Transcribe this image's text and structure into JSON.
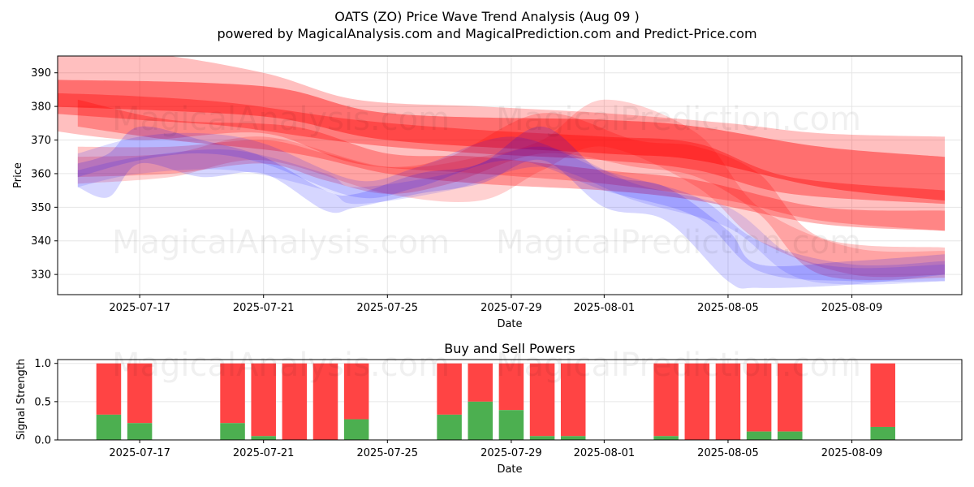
{
  "figure": {
    "title": "OATS (ZO) Price Wave Trend Analysis (Aug 09 )",
    "subtitle": "powered by MagicalAnalysis.com and MagicalPrediction.com and Predict-Price.com",
    "watermarks": [
      "MagicalAnalysis.com",
      "MagicalPrediction.com"
    ]
  },
  "colors": {
    "bear": "#ff0000",
    "bull": "#0000ff",
    "buy": "#4caf50",
    "sell": "#ff4444",
    "grid": "#e6e6e6"
  },
  "chart_data": [
    {
      "type": "area",
      "xlabel": "Date",
      "ylabel": "Price",
      "x_ticks": [
        "2025-07-17",
        "2025-07-21",
        "2025-07-25",
        "2025-07-29",
        "2025-08-01",
        "2025-08-05",
        "2025-08-09"
      ],
      "y_ticks": [
        330,
        340,
        350,
        360,
        370,
        380,
        390
      ],
      "xlim": [
        "2025-07-14",
        "2025-08-12"
      ],
      "ylim": [
        324,
        395
      ],
      "grid": true,
      "bear_waves": [
        {
          "x": [
            "2025-07-14",
            "2025-07-21",
            "2025-07-25",
            "2025-08-01",
            "2025-08-04",
            "2025-08-08",
            "2025-08-12"
          ],
          "upper": [
            388,
            386,
            378,
            376,
            374,
            368,
            365
          ],
          "lower": [
            380,
            377,
            370,
            366,
            364,
            356,
            352
          ]
        },
        {
          "x": [
            "2025-07-14",
            "2025-07-17",
            "2025-07-21",
            "2025-07-24",
            "2025-07-28",
            "2025-08-01",
            "2025-08-05",
            "2025-08-08",
            "2025-08-12"
          ],
          "upper": [
            395,
            396,
            390,
            382,
            380,
            378,
            375,
            372,
            371
          ],
          "lower": [
            373,
            370,
            372,
            363,
            360,
            357,
            352,
            346,
            343
          ]
        },
        {
          "x": [
            "2025-07-15",
            "2025-07-18",
            "2025-07-22",
            "2025-07-25",
            "2025-07-28",
            "2025-08-01",
            "2025-08-04",
            "2025-08-08",
            "2025-08-12"
          ],
          "upper": [
            382,
            376,
            374,
            366,
            365,
            361,
            358,
            350,
            349
          ],
          "lower": [
            374,
            370,
            366,
            360,
            357,
            355,
            352,
            345,
            343
          ]
        },
        {
          "x": [
            "2025-07-15",
            "2025-07-18",
            "2025-07-21",
            "2025-07-23",
            "2025-07-25",
            "2025-07-27",
            "2025-07-30",
            "2025-08-02",
            "2025-08-04",
            "2025-08-06",
            "2025-08-08",
            "2025-08-12"
          ],
          "upper": [
            368,
            368,
            370,
            366,
            362,
            365,
            378,
            370,
            368,
            360,
            341,
            338
          ],
          "lower": [
            359,
            360,
            363,
            358,
            354,
            357,
            366,
            362,
            359,
            348,
            330,
            329
          ]
        },
        {
          "x": [
            "2025-07-15",
            "2025-07-18",
            "2025-07-21",
            "2025-07-25",
            "2025-07-28",
            "2025-07-30",
            "2025-08-01",
            "2025-08-04",
            "2025-08-06",
            "2025-08-09",
            "2025-08-12"
          ],
          "upper": [
            365,
            366,
            371,
            362,
            365,
            370,
            382,
            372,
            350,
            338,
            337
          ],
          "lower": [
            357,
            359,
            364,
            354,
            352,
            361,
            368,
            356,
            340,
            330,
            330
          ]
        },
        {
          "x": [
            "2025-07-14",
            "2025-07-17",
            "2025-07-20",
            "2025-07-24",
            "2025-07-28",
            "2025-08-01",
            "2025-08-04",
            "2025-08-07",
            "2025-08-12"
          ],
          "upper": [
            384,
            383,
            381,
            376,
            373,
            371,
            369,
            359,
            355
          ],
          "lower": [
            378,
            376,
            374,
            369,
            366,
            364,
            361,
            354,
            351
          ]
        }
      ],
      "bull_waves": [
        {
          "x": [
            "2025-07-15",
            "2025-07-16",
            "2025-07-17",
            "2025-07-19",
            "2025-07-21",
            "2025-07-23",
            "2025-07-24",
            "2025-07-26",
            "2025-07-28",
            "2025-07-30",
            "2025-08-01",
            "2025-08-03",
            "2025-08-05",
            "2025-08-06",
            "2025-08-09",
            "2025-08-12"
          ],
          "upper": [
            363,
            366,
            374,
            370,
            365,
            355,
            354,
            360,
            363,
            374,
            360,
            356,
            343,
            333,
            334,
            336
          ],
          "lower": [
            356,
            353,
            363,
            359,
            360,
            349,
            350,
            354,
            357,
            364,
            350,
            346,
            328,
            326,
            327,
            330
          ]
        },
        {
          "x": [
            "2025-07-15",
            "2025-07-17",
            "2025-07-19",
            "2025-07-21",
            "2025-07-24",
            "2025-07-26",
            "2025-07-29",
            "2025-08-01",
            "2025-08-04",
            "2025-08-06",
            "2025-08-09",
            "2025-08-12"
          ],
          "upper": [
            366,
            371,
            372,
            369,
            358,
            362,
            371,
            361,
            353,
            340,
            333,
            334
          ],
          "lower": [
            359,
            364,
            366,
            363,
            353,
            356,
            364,
            355,
            347,
            331,
            328,
            328
          ]
        },
        {
          "x": [
            "2025-07-15",
            "2025-07-17",
            "2025-07-20",
            "2025-07-23",
            "2025-07-24",
            "2025-07-27",
            "2025-07-30",
            "2025-08-02",
            "2025-08-05",
            "2025-08-07",
            "2025-08-09",
            "2025-08-12"
          ],
          "upper": [
            361,
            365,
            367,
            360,
            356,
            360,
            368,
            357,
            350,
            336,
            332,
            333
          ],
          "lower": [
            356,
            360,
            361,
            355,
            351,
            355,
            362,
            352,
            344,
            330,
            327,
            328
          ]
        }
      ]
    },
    {
      "type": "bar",
      "title": "Buy and Sell Powers",
      "xlabel": "Date",
      "ylabel": "Signal Strength",
      "x_ticks": [
        "2025-07-17",
        "2025-07-21",
        "2025-07-25",
        "2025-07-29",
        "2025-08-01",
        "2025-08-05",
        "2025-08-09"
      ],
      "y_ticks": [
        "0.0",
        "0.5",
        "1.0"
      ],
      "xlim": [
        "2025-07-14",
        "2025-08-12"
      ],
      "ylim": [
        0,
        1.05
      ],
      "grid": true,
      "bars": [
        {
          "date": "2025-07-16",
          "buy": 0.33
        },
        {
          "date": "2025-07-17",
          "buy": 0.22
        },
        {
          "date": "2025-07-20",
          "buy": 0.22
        },
        {
          "date": "2025-07-21",
          "buy": 0.05
        },
        {
          "date": "2025-07-22",
          "buy": 0.0
        },
        {
          "date": "2025-07-23",
          "buy": 0.0
        },
        {
          "date": "2025-07-24",
          "buy": 0.27
        },
        {
          "date": "2025-07-27",
          "buy": 0.33
        },
        {
          "date": "2025-07-28",
          "buy": 0.5
        },
        {
          "date": "2025-07-29",
          "buy": 0.39
        },
        {
          "date": "2025-07-30",
          "buy": 0.05
        },
        {
          "date": "2025-07-31",
          "buy": 0.05
        },
        {
          "date": "2025-08-03",
          "buy": 0.05
        },
        {
          "date": "2025-08-04",
          "buy": 0.0
        },
        {
          "date": "2025-08-05",
          "buy": 0.0
        },
        {
          "date": "2025-08-06",
          "buy": 0.11
        },
        {
          "date": "2025-08-07",
          "buy": 0.11
        },
        {
          "date": "2025-08-10",
          "buy": 0.17
        }
      ]
    }
  ]
}
